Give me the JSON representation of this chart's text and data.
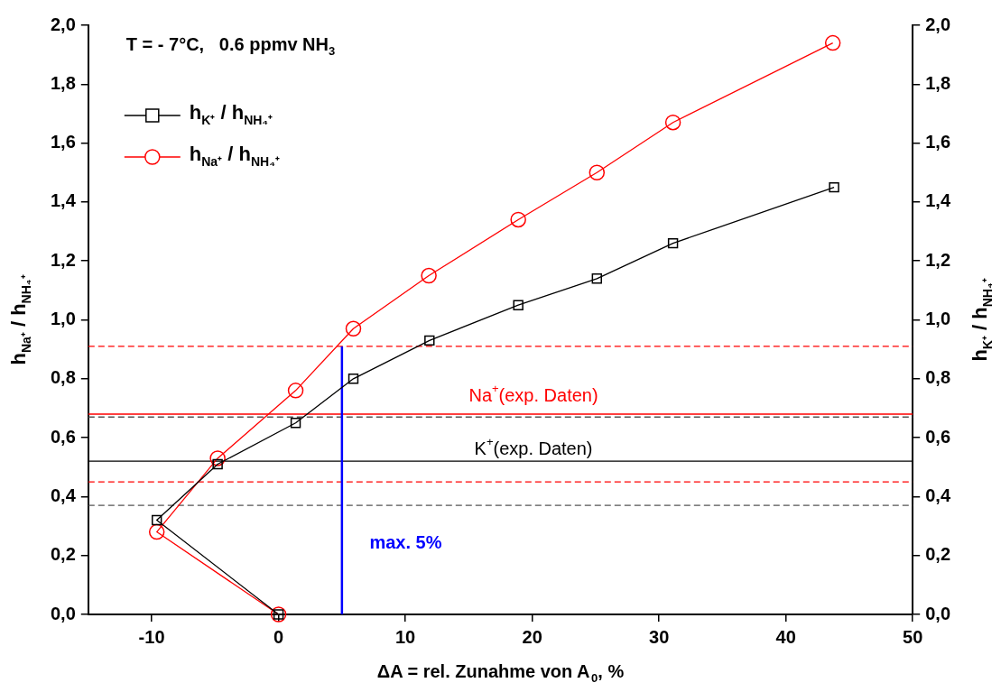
{
  "chart_data": {
    "type": "line",
    "xlabel": "ΔA = rel. Zunahme von A$_{0}$, %",
    "ylabel": "h$_{Na⁺}$ / h$_{NH₄⁺}$",
    "y2label": "h$_{K⁺}$ / h$_{NH₄⁺}$",
    "annotations": [
      "T = - 7°C,   0.6 ppmv NH$_{3}$",
      "Na$^{+}$(exp. Daten)",
      "K$^{+}$(exp. Daten)",
      "max. 5%"
    ],
    "series": [
      {
        "name": "h$_{K⁺}$ / h$_{NH₄⁺}$",
        "color": "#000000",
        "marker": "square",
        "x": [
          0,
          -9.6,
          -4.8,
          1.35,
          5.9,
          11.9,
          18.9,
          25.1,
          31.1,
          43.8
        ],
        "values": [
          0,
          0.32,
          0.51,
          0.65,
          0.8,
          0.93,
          1.05,
          1.14,
          1.26,
          1.45
        ]
      },
      {
        "name": "h$_{Na⁺}$ / h$_{NH₄⁺}$",
        "color": "#ff0000",
        "marker": "circle",
        "x": [
          0,
          -9.6,
          -4.8,
          1.35,
          5.9,
          11.85,
          18.9,
          25.1,
          31.1,
          43.7
        ],
        "values": [
          0,
          0.28,
          0.53,
          0.76,
          0.97,
          1.15,
          1.34,
          1.5,
          1.67,
          1.94
        ]
      },
      {
        "color": "#0000ff",
        "marker": "none",
        "x": [
          5,
          5
        ],
        "values": [
          0,
          0.91
        ]
      }
    ],
    "ref_lines": [
      {
        "axis": "y",
        "value": 0.91,
        "color": "#ff0000",
        "line_style": "dashed"
      },
      {
        "axis": "y",
        "value": 0.68,
        "color": "#ff0000",
        "line_style": "solid"
      },
      {
        "axis": "y",
        "value": 0.67,
        "color": "#555555",
        "line_style": "dashed"
      },
      {
        "axis": "y",
        "value": 0.52,
        "color": "#000000",
        "line_style": "solid"
      },
      {
        "axis": "y",
        "value": 0.45,
        "color": "#ff0000",
        "line_style": "dashed"
      },
      {
        "axis": "y",
        "value": 0.37,
        "color": "#555555",
        "line_style": "dashed"
      }
    ],
    "xlim": [
      -15,
      50
    ],
    "xticks": [
      -10,
      0,
      10,
      20,
      30,
      40,
      50
    ],
    "ylim": [
      0,
      2
    ],
    "yticks": [
      {
        "value": 0,
        "label": "0,0"
      },
      {
        "value": 0.2,
        "label": "0,2"
      },
      {
        "value": 0.4,
        "label": "0,4"
      },
      {
        "value": 0.6,
        "label": "0,6"
      },
      {
        "value": 0.8,
        "label": "0,8"
      },
      {
        "value": 1,
        "label": "1,0"
      },
      {
        "value": 1.2,
        "label": "1,2"
      },
      {
        "value": 1.4,
        "label": "1,4"
      },
      {
        "value": 1.6,
        "label": "1,6"
      },
      {
        "value": 1.8,
        "label": "1,8"
      },
      {
        "value": 2,
        "label": "2,0"
      }
    ],
    "y2lim": [
      0,
      2
    ],
    "y2ticks": [
      {
        "value": 0,
        "label": "0,0"
      },
      {
        "value": 0.2,
        "label": "0,2"
      },
      {
        "value": 0.4,
        "label": "0,4"
      },
      {
        "value": 0.6,
        "label": "0,6"
      },
      {
        "value": 0.8,
        "label": "0,8"
      },
      {
        "value": 1,
        "label": "1,0"
      },
      {
        "value": 1.2,
        "label": "1,2"
      },
      {
        "value": 1.4,
        "label": "1,4"
      },
      {
        "value": 1.6,
        "label": "1,6"
      },
      {
        "value": 1.8,
        "label": "1,8"
      },
      {
        "value": 2,
        "label": "2,0"
      }
    ],
    "grid": false,
    "legend": "top left"
  }
}
